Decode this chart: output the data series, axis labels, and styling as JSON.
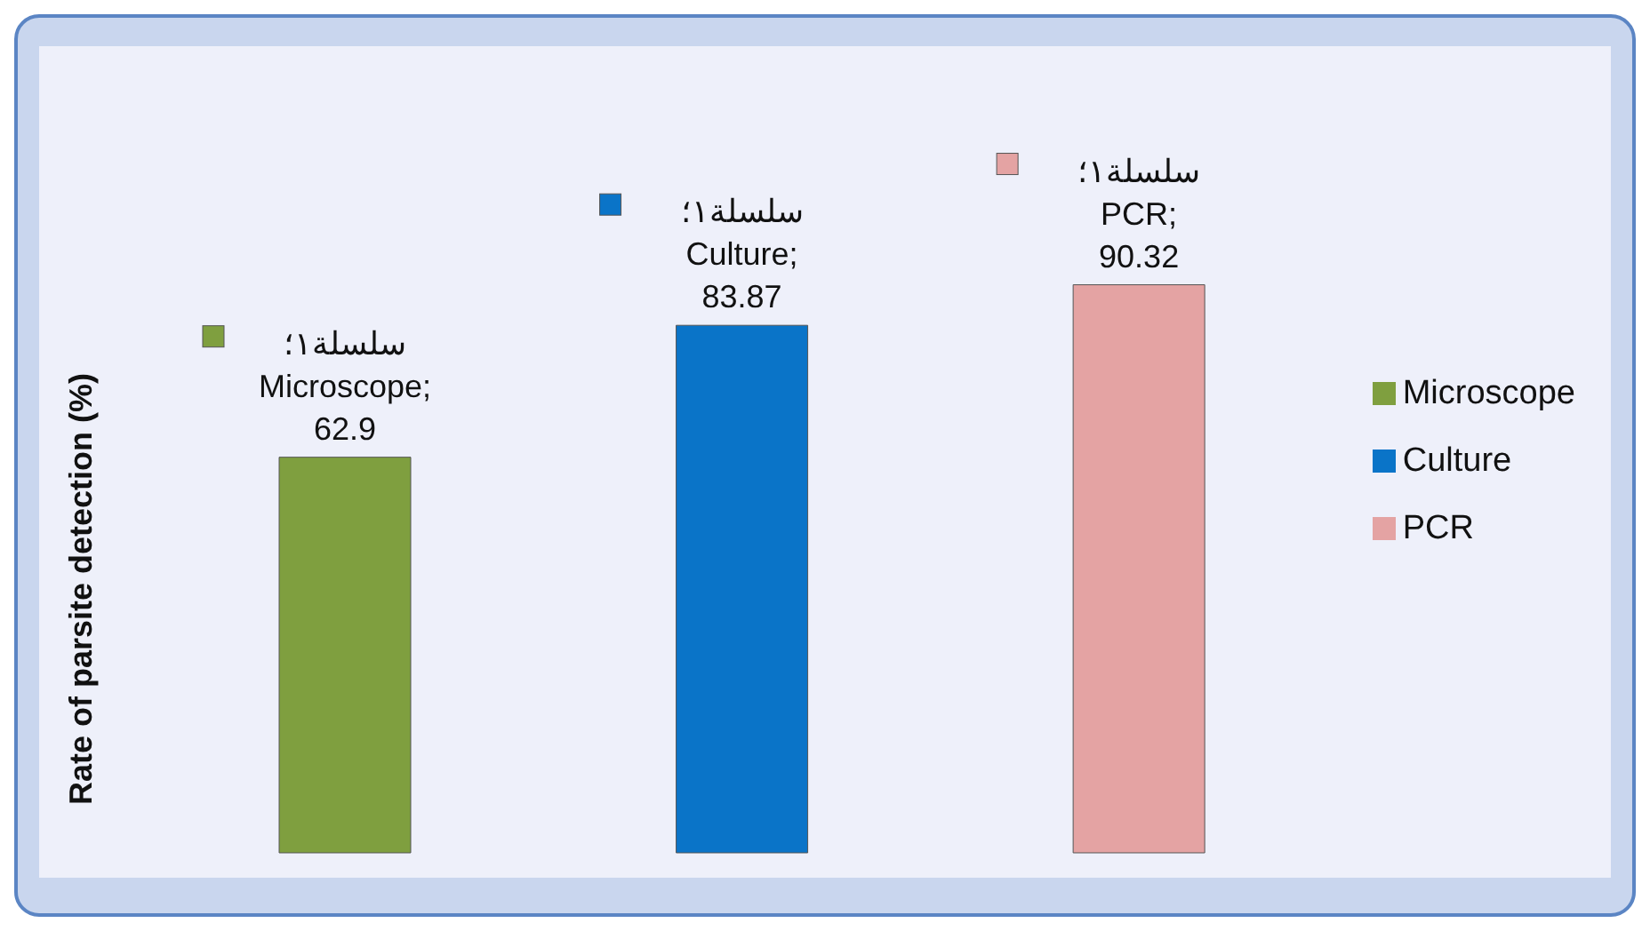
{
  "chart_data": {
    "type": "bar",
    "ylabel": "Rate of parsite detection (%)",
    "categories": [
      null,
      null,
      null
    ],
    "stacked": true,
    "series": [
      {
        "name": "Microscope",
        "color": "#7f9f3f",
        "values": [
          62.9,
          null,
          null
        ],
        "value_labels": [
          "سلسلة١؛ Microscope; 62.9",
          null,
          null
        ]
      },
      {
        "name": "Culture",
        "color": "#0a74c8",
        "values": [
          null,
          83.87,
          null
        ],
        "value_labels": [
          null,
          "سلسلة١؛ Culture; 83.87",
          null
        ]
      },
      {
        "name": "PCR",
        "color": "#e4a3a3",
        "values": [
          null,
          null,
          90.32
        ],
        "value_labels": [
          null,
          null,
          "سلسلة١؛ PCR; 90.32"
        ]
      }
    ],
    "legend": "right"
  }
}
